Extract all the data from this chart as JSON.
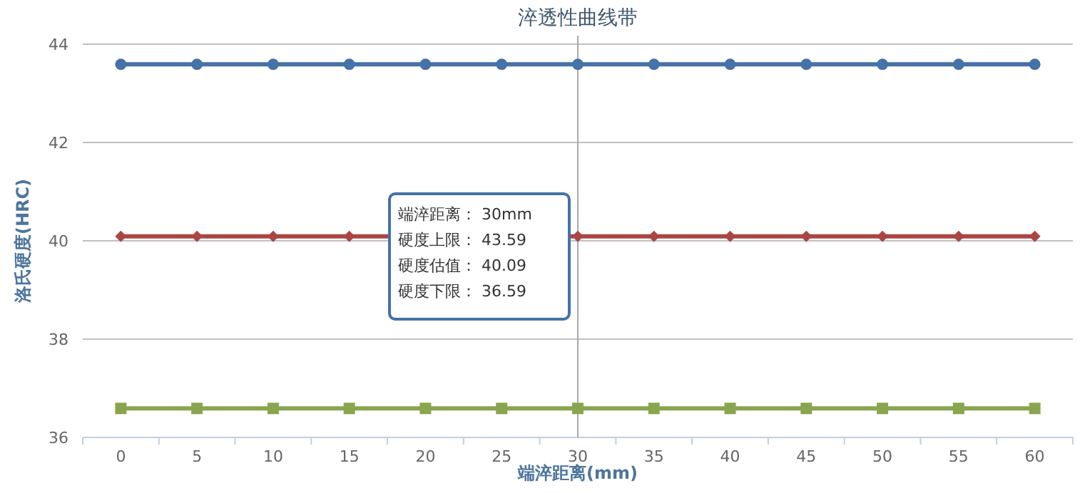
{
  "chart_data": {
    "type": "line",
    "title": "淬透性曲线带",
    "xlabel": "端淬距离(mm)",
    "ylabel": "洛氏硬度(HRC)",
    "categories": [
      "0",
      "5",
      "10",
      "15",
      "20",
      "25",
      "30",
      "35",
      "40",
      "45",
      "50",
      "55",
      "60"
    ],
    "ylim": [
      36,
      44
    ],
    "yticks": [
      36,
      38,
      40,
      42,
      44
    ],
    "grid": "y",
    "series": [
      {
        "color": "#4572a7",
        "marker": "circle",
        "values": [
          43.59,
          43.59,
          43.59,
          43.59,
          43.59,
          43.59,
          43.59,
          43.59,
          43.59,
          43.59,
          43.59,
          43.59,
          43.59
        ]
      },
      {
        "color": "#aa4643",
        "marker": "diamond",
        "values": [
          40.09,
          40.09,
          40.09,
          40.09,
          null,
          null,
          40.09,
          40.09,
          40.09,
          40.09,
          40.09,
          40.09,
          40.09
        ]
      },
      {
        "color": "#89a54e",
        "marker": "square",
        "values": [
          36.59,
          36.59,
          36.59,
          36.59,
          36.59,
          36.59,
          36.59,
          36.59,
          36.59,
          36.59,
          36.59,
          36.59,
          36.59
        ]
      }
    ],
    "ref_lines": [
      {
        "axis": "x",
        "value": "30",
        "color": "#aaaaaa"
      }
    ],
    "annotations": [
      "端淬距离： 30mm",
      "硬度上限： 43.59",
      "硬度估值： 40.09",
      "硬度下限： 36.59"
    ]
  }
}
